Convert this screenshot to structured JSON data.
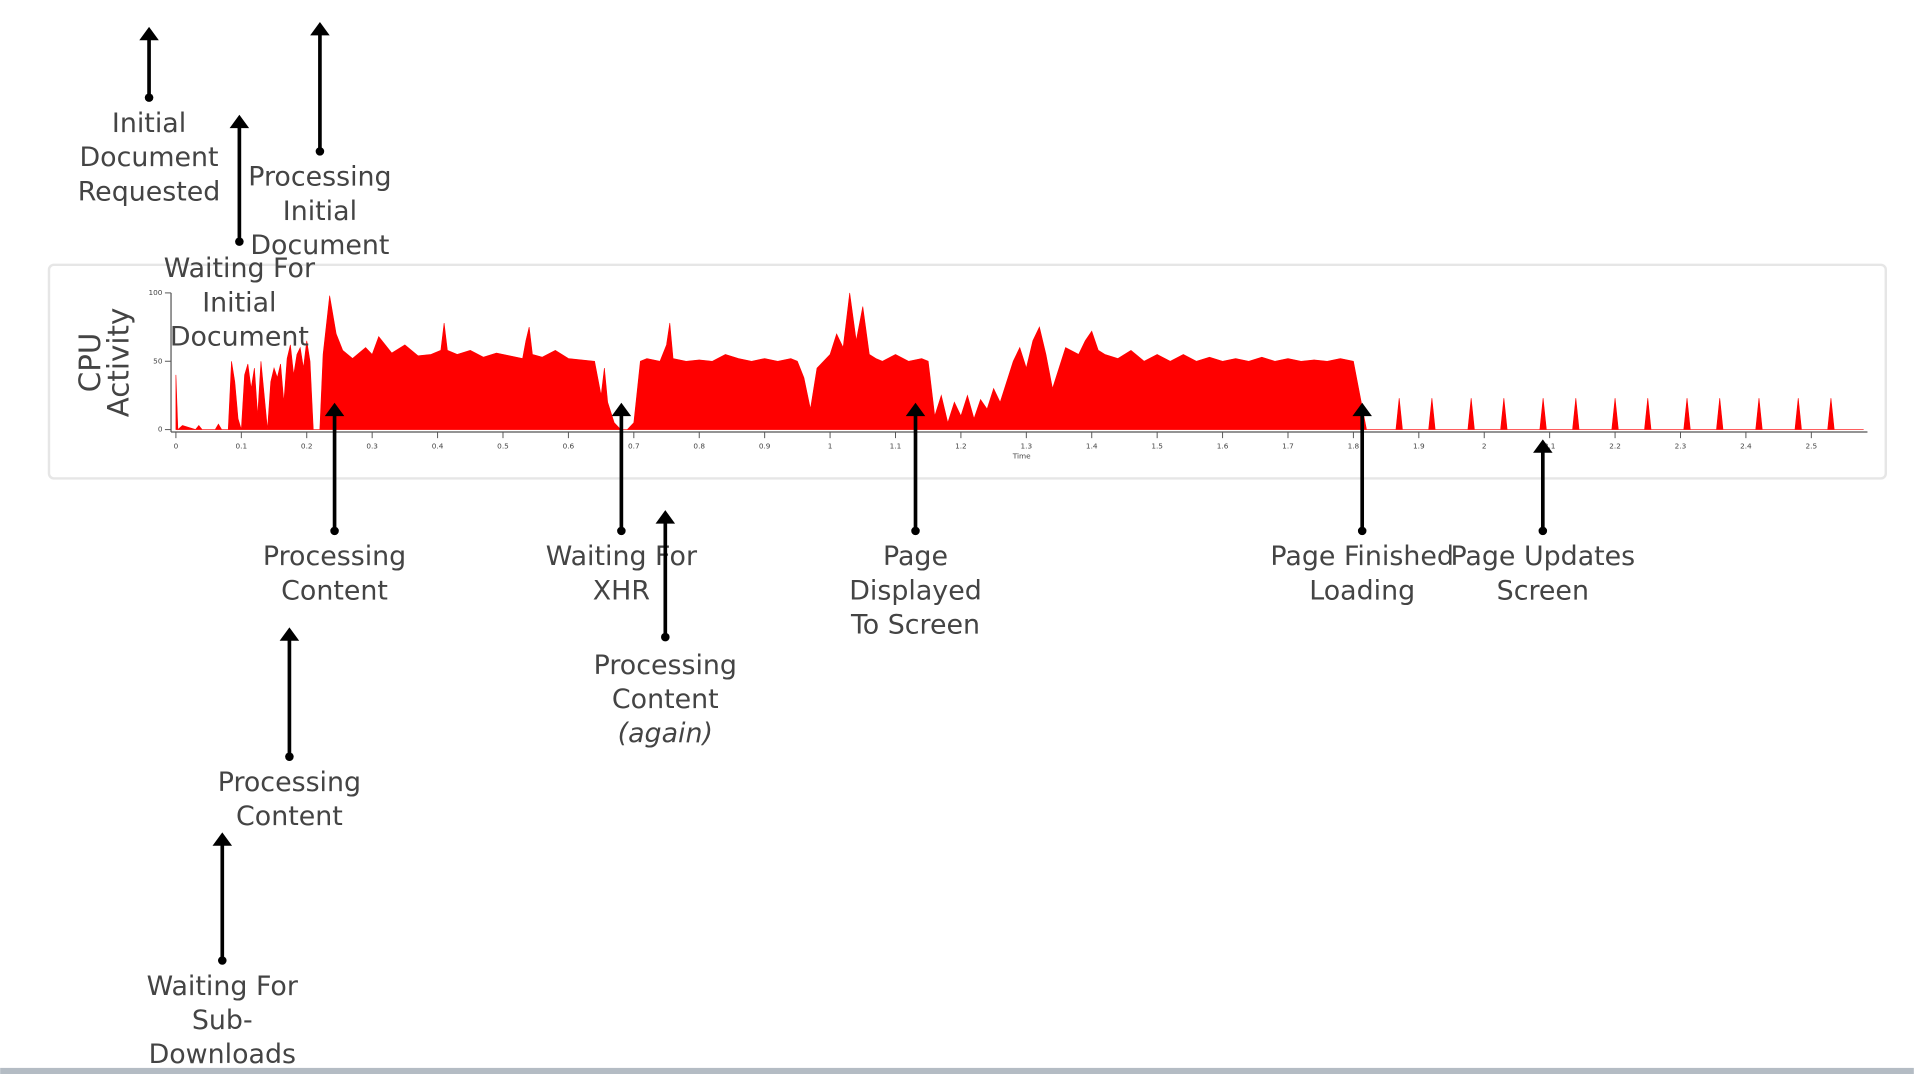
{
  "chart_data": {
    "type": "area",
    "ylabel": [
      "CPU",
      "Activity"
    ],
    "xlabel": "Time",
    "color": "#ff0000",
    "x": [
      0,
      0.003,
      0.01,
      0.03,
      0.035,
      0.04,
      0.06,
      0.065,
      0.07,
      0.08,
      0.085,
      0.09,
      0.095,
      0.1,
      0.105,
      0.11,
      0.115,
      0.12,
      0.125,
      0.13,
      0.135,
      0.14,
      0.145,
      0.15,
      0.155,
      0.16,
      0.165,
      0.17,
      0.175,
      0.18,
      0.185,
      0.19,
      0.195,
      0.2,
      0.205,
      0.21,
      0.22,
      0.225,
      0.235,
      0.245,
      0.255,
      0.27,
      0.29,
      0.3,
      0.31,
      0.33,
      0.35,
      0.37,
      0.39,
      0.405,
      0.41,
      0.415,
      0.43,
      0.45,
      0.47,
      0.49,
      0.51,
      0.53,
      0.535,
      0.54,
      0.545,
      0.56,
      0.58,
      0.6,
      0.62,
      0.64,
      0.65,
      0.655,
      0.66,
      0.67,
      0.68,
      0.69,
      0.7,
      0.71,
      0.72,
      0.74,
      0.75,
      0.755,
      0.76,
      0.78,
      0.8,
      0.82,
      0.84,
      0.86,
      0.88,
      0.9,
      0.92,
      0.94,
      0.95,
      0.96,
      0.97,
      0.98,
      1.0,
      1.01,
      1.02,
      1.03,
      1.04,
      1.05,
      1.06,
      1.07,
      1.08,
      1.1,
      1.12,
      1.14,
      1.15,
      1.16,
      1.17,
      1.18,
      1.19,
      1.2,
      1.21,
      1.22,
      1.23,
      1.24,
      1.25,
      1.26,
      1.27,
      1.28,
      1.29,
      1.3,
      1.31,
      1.32,
      1.33,
      1.34,
      1.36,
      1.38,
      1.39,
      1.4,
      1.41,
      1.42,
      1.44,
      1.46,
      1.48,
      1.5,
      1.52,
      1.54,
      1.56,
      1.58,
      1.6,
      1.62,
      1.64,
      1.66,
      1.68,
      1.7,
      1.72,
      1.74,
      1.76,
      1.78,
      1.8,
      1.81,
      1.82,
      1.83,
      1.865,
      1.87,
      1.875,
      1.915,
      1.92,
      1.925,
      1.975,
      1.98,
      1.985,
      2.025,
      2.03,
      2.035,
      2.085,
      2.09,
      2.095,
      2.135,
      2.14,
      2.145,
      2.195,
      2.2,
      2.205,
      2.245,
      2.25,
      2.255,
      2.305,
      2.31,
      2.315,
      2.355,
      2.36,
      2.365,
      2.415,
      2.42,
      2.425,
      2.475,
      2.48,
      2.485,
      2.525,
      2.53,
      2.535,
      2.58
    ],
    "values": [
      40,
      0,
      3,
      0,
      3,
      0,
      0,
      4,
      0,
      0,
      50,
      35,
      8,
      0,
      40,
      48,
      30,
      45,
      10,
      50,
      25,
      0,
      35,
      45,
      38,
      48,
      20,
      52,
      62,
      40,
      55,
      60,
      45,
      65,
      50,
      0,
      0,
      55,
      98,
      70,
      58,
      52,
      60,
      55,
      68,
      56,
      62,
      54,
      55,
      58,
      78,
      58,
      55,
      58,
      53,
      56,
      54,
      52,
      65,
      75,
      55,
      53,
      58,
      52,
      51,
      50,
      25,
      45,
      20,
      5,
      0,
      0,
      5,
      50,
      52,
      50,
      62,
      78,
      52,
      50,
      51,
      50,
      55,
      52,
      50,
      52,
      50,
      52,
      50,
      38,
      15,
      45,
      55,
      70,
      60,
      100,
      65,
      90,
      55,
      52,
      50,
      55,
      50,
      52,
      50,
      10,
      25,
      5,
      20,
      10,
      25,
      8,
      22,
      15,
      30,
      20,
      35,
      50,
      60,
      45,
      65,
      75,
      55,
      30,
      60,
      55,
      65,
      72,
      58,
      55,
      52,
      58,
      50,
      55,
      50,
      55,
      50,
      53,
      50,
      52,
      50,
      53,
      50,
      52,
      50,
      51,
      50,
      52,
      50,
      25,
      0,
      0,
      0,
      23,
      0,
      0,
      23,
      0,
      0,
      23,
      0,
      0,
      23,
      0,
      0,
      23,
      0,
      0,
      23,
      0,
      0,
      23,
      0,
      0,
      23,
      0,
      0,
      23,
      0,
      0,
      23,
      0,
      0,
      23,
      0,
      0,
      23,
      0,
      0,
      23,
      0,
      0
    ],
    "xlim": [
      0,
      2.6
    ],
    "ylim": [
      0,
      100
    ],
    "xticks": [
      0,
      0.1,
      0.2,
      0.3,
      0.4,
      0.5,
      0.6,
      0.7,
      0.8,
      0.9,
      1,
      1.1,
      1.2,
      1.3,
      1.4,
      1.5,
      1.6,
      1.7,
      1.8,
      1.9,
      2,
      2.1,
      2.2,
      2.3,
      2.4,
      2.5
    ],
    "yticks": [
      0,
      50,
      100
    ],
    "annotations": [
      {
        "lines": [
          "Initial",
          "Document",
          "Requested"
        ]
      },
      {
        "lines": [
          "Processing",
          "Initial",
          "Document"
        ]
      },
      {
        "lines": [
          "Waiting For",
          "Initial",
          "Document"
        ]
      },
      {
        "lines": [
          "Processing",
          "Content"
        ]
      },
      {
        "lines": [
          "Waiting For",
          "XHR"
        ]
      },
      {
        "lines": [
          "Processing",
          "Content",
          "(again)"
        ]
      },
      {
        "lines": [
          "Page",
          "Displayed",
          "To Screen"
        ]
      },
      {
        "lines": [
          "Page Finished",
          "Loading"
        ]
      },
      {
        "lines": [
          "Page Updates",
          "Screen"
        ]
      },
      {
        "lines": [
          "Processing",
          "Content"
        ]
      },
      {
        "lines": [
          "Waiting For",
          "Sub-",
          "Downloads"
        ]
      }
    ]
  }
}
